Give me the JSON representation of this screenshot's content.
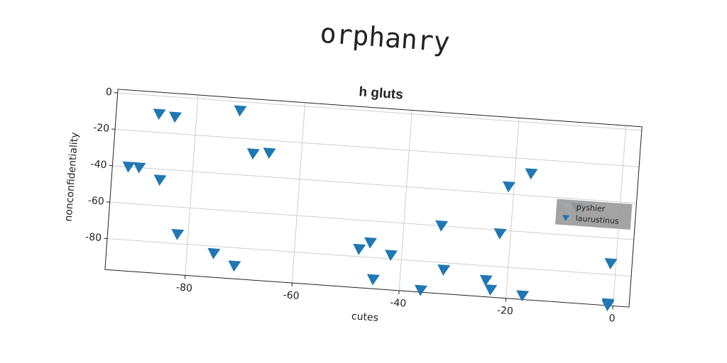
{
  "chart_data": {
    "type": "scatter",
    "title": "orphanry",
    "subtitle": "h gluts",
    "x_label": "cutes",
    "y_label": "nonconfidentiality",
    "xlim": [
      -95,
      3
    ],
    "ylim": [
      -97,
      2
    ],
    "xticks": [
      -80,
      -60,
      -40,
      -20,
      0
    ],
    "yticks": [
      0,
      -20,
      -40,
      -60,
      -80
    ],
    "grid": true,
    "legend": "right",
    "series": [
      {
        "name": "pyshier",
        "color": "#aaaaaa",
        "x": [],
        "values": []
      },
      {
        "name": "laurustinus",
        "color": "#1f77b4",
        "x": [
          -87,
          -84,
          -72,
          -92,
          -90,
          -86,
          -69,
          -66,
          -82,
          -75,
          -71,
          -48,
          -46,
          -42,
          -45,
          -36,
          -33,
          -32,
          -24,
          -23,
          -22,
          -21,
          -17,
          -17,
          -8,
          -1,
          -1,
          -1
        ],
        "values": [
          -10,
          -11,
          -5,
          -40,
          -40,
          -46,
          -28,
          -27,
          -75,
          -84,
          -90,
          -76,
          -72,
          -78,
          -92,
          -96,
          -60,
          -84,
          -88,
          -93,
          -62,
          -36,
          -95,
          -28,
          -45,
          -74,
          -96,
          -97
        ]
      }
    ]
  }
}
